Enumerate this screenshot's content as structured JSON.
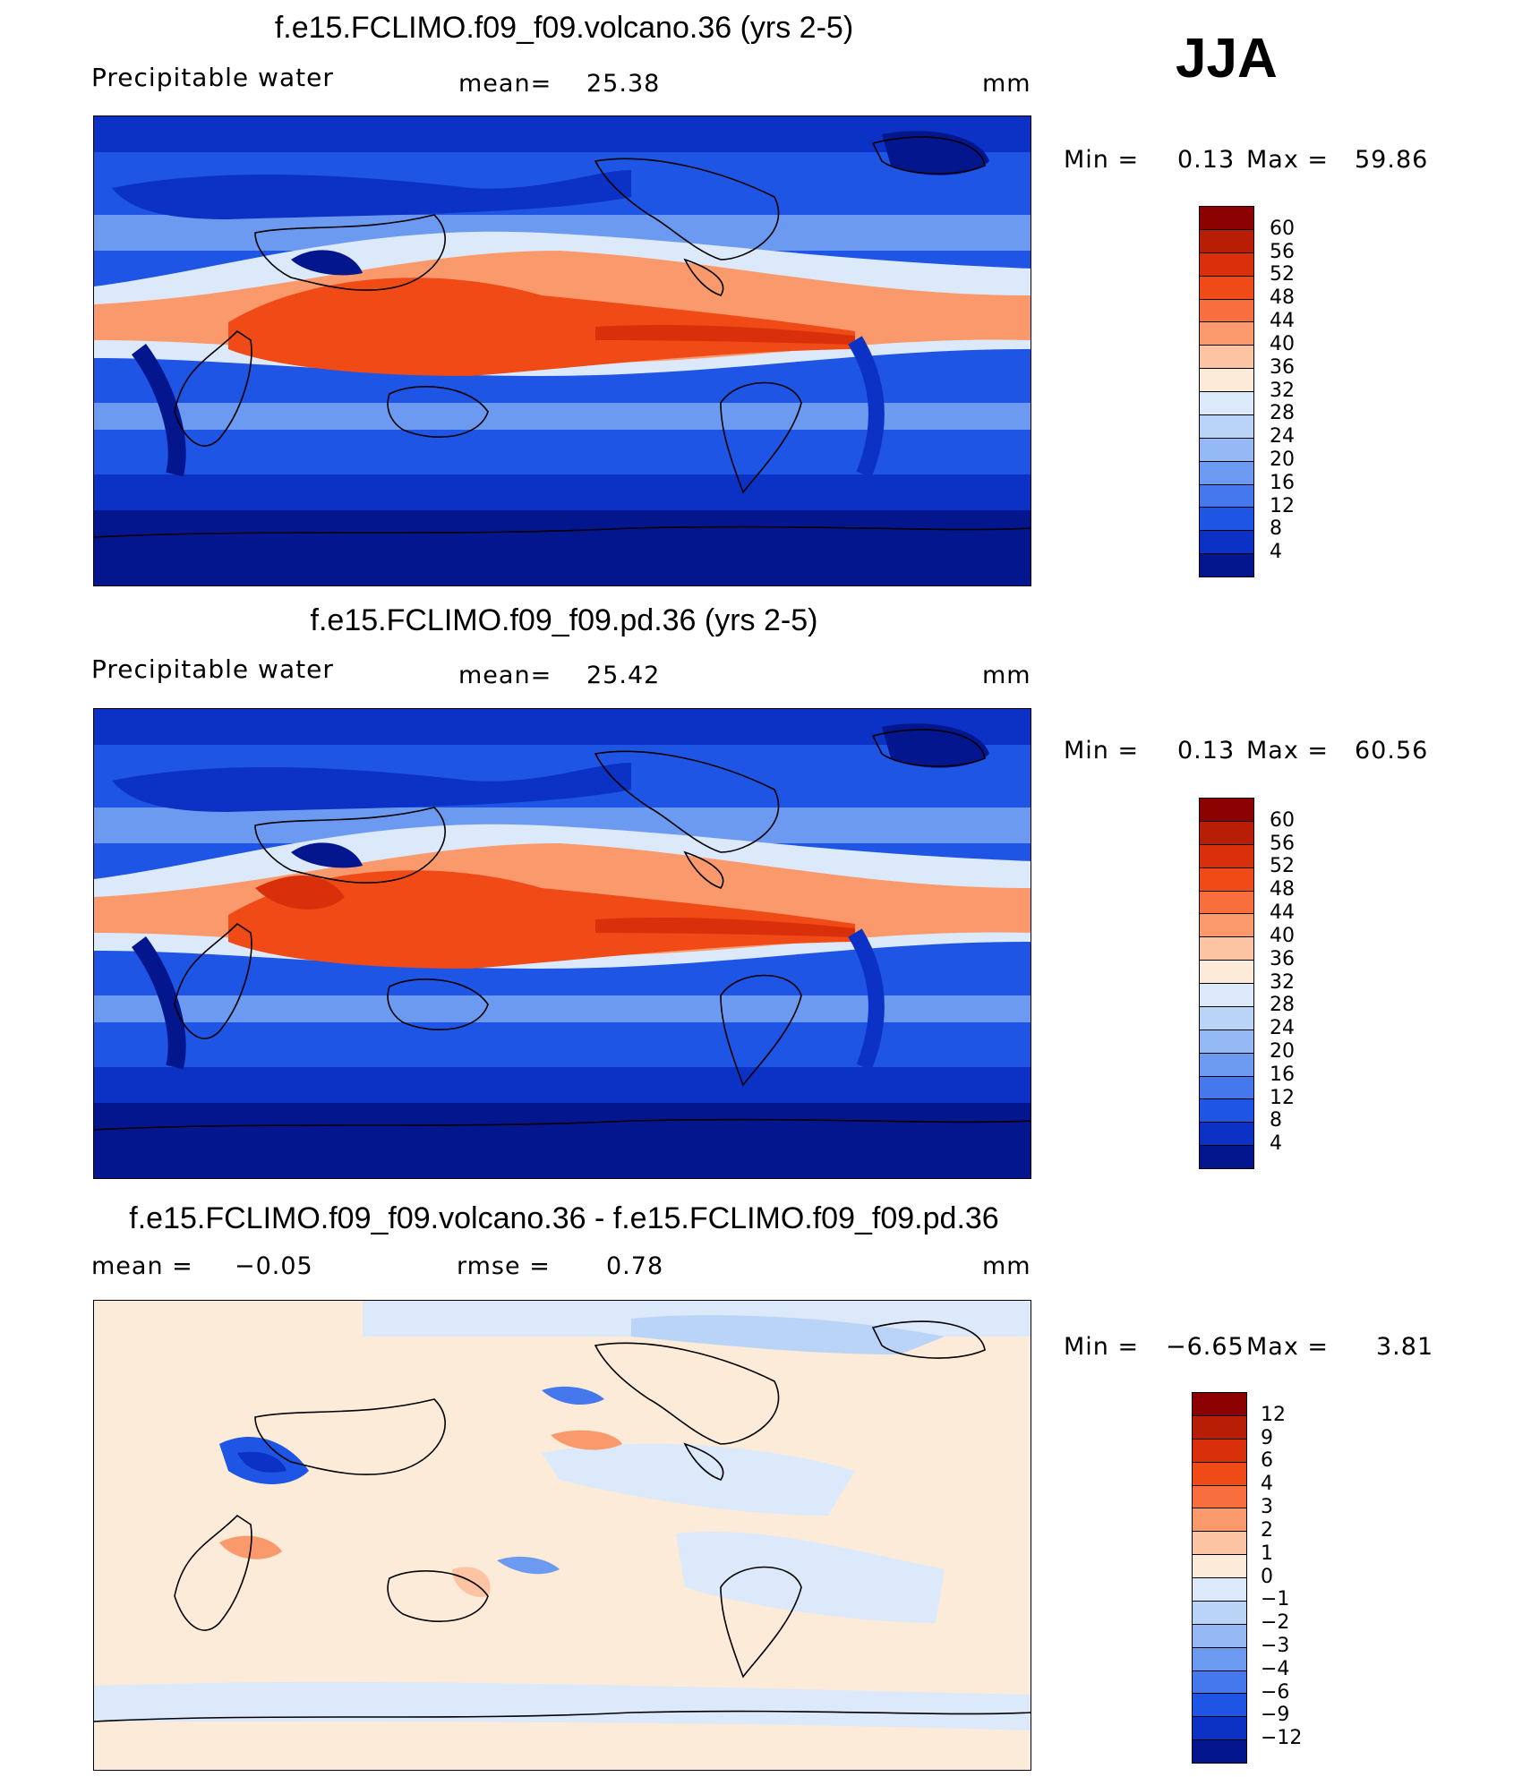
{
  "season": "JJA",
  "panels": [
    {
      "id": "volcano",
      "title": "f.e15.FCLIMO.f09_f09.volcano.36 (yrs 2-5)",
      "field_label": "Precipitable water",
      "stat_label": "mean=",
      "stat_value": "25.38",
      "units": "mm",
      "min_label": "Min =",
      "min_value": "0.13",
      "max_label": "Max =",
      "max_value": "59.86",
      "colorbar": {
        "colors": [
          "#8b0000",
          "#b81d06",
          "#d9300b",
          "#f04a17",
          "#f86e3c",
          "#fa9a6c",
          "#fcc4a2",
          "#fdebd9",
          "#dce9fa",
          "#bad4f8",
          "#94b9f5",
          "#6c9af0",
          "#4478ec",
          "#1f55e4",
          "#0b32c4",
          "#04168e"
        ],
        "labels": [
          "60",
          "56",
          "52",
          "48",
          "44",
          "40",
          "36",
          "32",
          "28",
          "24",
          "20",
          "16",
          "12",
          "8",
          "4"
        ]
      },
      "map_colors": {
        "cold": "#04168e",
        "cool": "#1f55e4",
        "mid": "#6c9af0",
        "light": "#dce9fa",
        "warm": "#fa9a6c",
        "hot": "#f04a17",
        "hotter": "#d9300b"
      }
    },
    {
      "id": "pd",
      "title": "f.e15.FCLIMO.f09_f09.pd.36 (yrs 2-5)",
      "field_label": "Precipitable water",
      "stat_label": "mean=",
      "stat_value": "25.42",
      "units": "mm",
      "min_label": "Min =",
      "min_value": "0.13",
      "max_label": "Max =",
      "max_value": "60.56",
      "colorbar": {
        "colors": [
          "#8b0000",
          "#b81d06",
          "#d9300b",
          "#f04a17",
          "#f86e3c",
          "#fa9a6c",
          "#fcc4a2",
          "#fdebd9",
          "#dce9fa",
          "#bad4f8",
          "#94b9f5",
          "#6c9af0",
          "#4478ec",
          "#1f55e4",
          "#0b32c4",
          "#04168e"
        ],
        "labels": [
          "60",
          "56",
          "52",
          "48",
          "44",
          "40",
          "36",
          "32",
          "28",
          "24",
          "20",
          "16",
          "12",
          "8",
          "4"
        ]
      },
      "map_colors": {
        "cold": "#04168e",
        "cool": "#1f55e4",
        "mid": "#6c9af0",
        "light": "#dce9fa",
        "warm": "#fa9a6c",
        "hot": "#f04a17",
        "hotter": "#d9300b"
      }
    },
    {
      "id": "diff",
      "title": "f.e15.FCLIMO.f09_f09.volcano.36 - f.e15.FCLIMO.f09_f09.pd.36",
      "field_label": "mean =",
      "field_value": "−0.05",
      "stat_label": "rmse =",
      "stat_value": "0.78",
      "units": "mm",
      "min_label": "Min =",
      "min_value": "−6.65",
      "max_label": "Max =",
      "max_value": "3.81",
      "colorbar": {
        "colors": [
          "#8b0000",
          "#b81d06",
          "#d9300b",
          "#f04a17",
          "#f86e3c",
          "#fa9a6c",
          "#fcc4a2",
          "#fdebd9",
          "#dce9fa",
          "#bad4f8",
          "#94b9f5",
          "#6c9af0",
          "#4478ec",
          "#1f55e4",
          "#0b32c4",
          "#04168e"
        ],
        "labels": [
          "12",
          "9",
          "6",
          "4",
          "3",
          "2",
          "1",
          "0",
          "−1",
          "−2",
          "−3",
          "−4",
          "−6",
          "−9",
          "−12"
        ]
      },
      "map_colors": {
        "base_warm": "#fdebd9",
        "base_cool": "#dce9fa",
        "neg": "#6c9af0",
        "neg2": "#1f55e4",
        "pos": "#fa9a6c"
      }
    }
  ]
}
